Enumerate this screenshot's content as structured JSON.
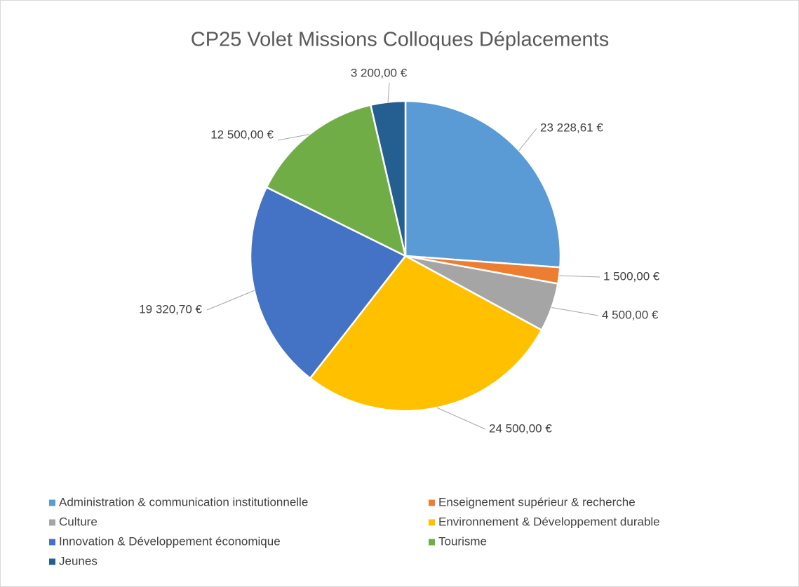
{
  "chart_data": {
    "type": "pie",
    "title": "CP25 Volet Missions Colloques Déplacements",
    "categories": [
      "Administration & communication institutionnelle",
      "Enseignement supérieur & recherche",
      "Culture",
      "Environnement & Développement durable",
      "Innovation & Développement économique",
      "Tourisme",
      "Jeunes"
    ],
    "values": [
      23228.61,
      1500,
      4500,
      24500,
      19320.7,
      12500,
      3200
    ],
    "value_labels": [
      "23 228,61 €",
      "1 500,00 €",
      "4 500,00 €",
      "24 500,00 €",
      "19 320,70 €",
      "12 500,00 €",
      "3 200,00 €"
    ],
    "colors": [
      "#5b9bd5",
      "#ed7d31",
      "#a5a5a5",
      "#ffc000",
      "#4472c4",
      "#70ad47",
      "#255e91"
    ],
    "legend": "bottom"
  }
}
